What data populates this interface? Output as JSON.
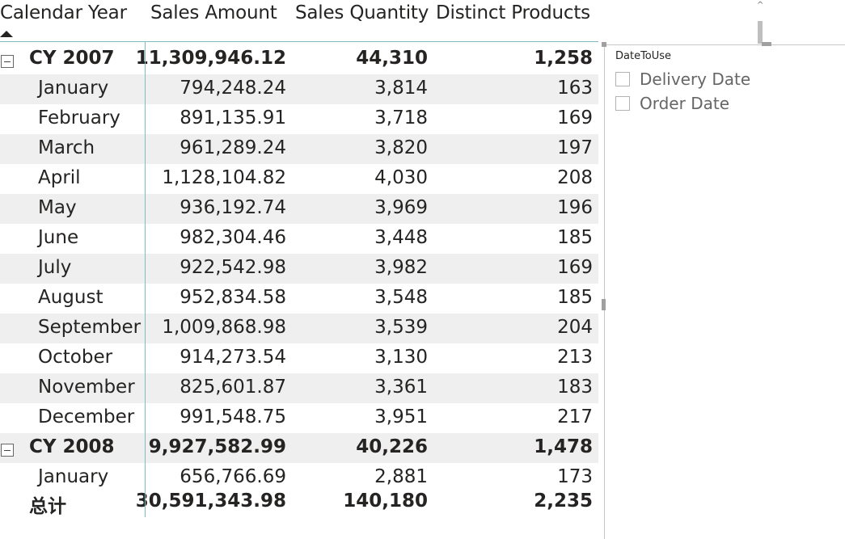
{
  "matrix": {
    "headers": [
      "Calendar Year",
      "Sales Amount",
      "Sales Quantity",
      "Distinct Products"
    ],
    "rows": [
      {
        "kind": "year",
        "name": "CY 2007",
        "sales_amount": "11,309,946.12",
        "sales_quantity": "44,310",
        "distinct_products": "1,258"
      },
      {
        "kind": "month",
        "name": "January",
        "sales_amount": "794,248.24",
        "sales_quantity": "3,814",
        "distinct_products": "163"
      },
      {
        "kind": "month",
        "name": "February",
        "sales_amount": "891,135.91",
        "sales_quantity": "3,718",
        "distinct_products": "169"
      },
      {
        "kind": "month",
        "name": "March",
        "sales_amount": "961,289.24",
        "sales_quantity": "3,820",
        "distinct_products": "197"
      },
      {
        "kind": "month",
        "name": "April",
        "sales_amount": "1,128,104.82",
        "sales_quantity": "4,030",
        "distinct_products": "208"
      },
      {
        "kind": "month",
        "name": "May",
        "sales_amount": "936,192.74",
        "sales_quantity": "3,969",
        "distinct_products": "196"
      },
      {
        "kind": "month",
        "name": "June",
        "sales_amount": "982,304.46",
        "sales_quantity": "3,448",
        "distinct_products": "185"
      },
      {
        "kind": "month",
        "name": "July",
        "sales_amount": "922,542.98",
        "sales_quantity": "3,982",
        "distinct_products": "169"
      },
      {
        "kind": "month",
        "name": "August",
        "sales_amount": "952,834.58",
        "sales_quantity": "3,548",
        "distinct_products": "185"
      },
      {
        "kind": "month",
        "name": "September",
        "sales_amount": "1,009,868.98",
        "sales_quantity": "3,539",
        "distinct_products": "204"
      },
      {
        "kind": "month",
        "name": "October",
        "sales_amount": "914,273.54",
        "sales_quantity": "3,130",
        "distinct_products": "213"
      },
      {
        "kind": "month",
        "name": "November",
        "sales_amount": "825,601.87",
        "sales_quantity": "3,361",
        "distinct_products": "183"
      },
      {
        "kind": "month",
        "name": "December",
        "sales_amount": "991,548.75",
        "sales_quantity": "3,951",
        "distinct_products": "217"
      },
      {
        "kind": "year",
        "name": "CY 2008",
        "sales_amount": "9,927,582.99",
        "sales_quantity": "40,226",
        "distinct_products": "1,478"
      },
      {
        "kind": "month",
        "name": "January",
        "sales_amount": "656,766.69",
        "sales_quantity": "2,881",
        "distinct_products": "173"
      }
    ],
    "total": {
      "name": "总计",
      "sales_amount": "30,591,343.98",
      "sales_quantity": "140,180",
      "distinct_products": "2,235"
    },
    "sort_icon": "sort-ascending-icon",
    "expander_icon": "collapse-minus-icon",
    "grid_color": "#7dbcc2",
    "band_color": "#efefef"
  },
  "slicer": {
    "title": "DateToUse",
    "items": [
      {
        "label": "Delivery Date",
        "checked": false
      },
      {
        "label": "Order Date",
        "checked": false
      }
    ]
  }
}
